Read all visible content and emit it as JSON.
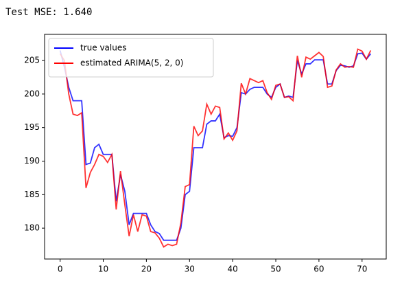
{
  "output_text": "Test MSE: 1.640",
  "chart_data": {
    "type": "line",
    "x": [
      0,
      1,
      2,
      3,
      4,
      5,
      6,
      7,
      8,
      9,
      10,
      11,
      12,
      13,
      14,
      15,
      16,
      17,
      18,
      19,
      20,
      21,
      22,
      23,
      24,
      25,
      26,
      27,
      28,
      29,
      30,
      31,
      32,
      33,
      34,
      35,
      36,
      37,
      38,
      39,
      40,
      41,
      42,
      43,
      44,
      45,
      46,
      47,
      48,
      49,
      50,
      51,
      52,
      53,
      54,
      55,
      56,
      57,
      58,
      59,
      60,
      61,
      62,
      63,
      64,
      65,
      66,
      67,
      68,
      69,
      70,
      71,
      72
    ],
    "series": [
      {
        "name": "true values",
        "color": "#0000ff",
        "values": [
          206.5,
          204,
          201,
          199,
          199,
          199,
          189.5,
          189.7,
          192,
          192.5,
          191,
          191,
          191,
          184,
          188,
          185.5,
          180.5,
          182.2,
          182.2,
          182.2,
          182.2,
          180.5,
          179.5,
          179.2,
          178.2,
          178.2,
          178.2,
          178.2,
          180,
          185,
          185.5,
          192,
          192,
          192,
          195.5,
          196,
          196,
          197,
          193.5,
          193.8,
          193.7,
          195,
          200.2,
          200,
          200.7,
          201,
          201,
          201,
          200,
          199.5,
          201,
          201.5,
          199.5,
          199.7,
          199.5,
          205,
          203,
          204.5,
          204.5,
          205.1,
          205.1,
          205.1,
          201.5,
          201.5,
          203.5,
          204.3,
          204.2,
          204,
          204.2,
          206,
          206.1,
          205.2,
          206
        ]
      },
      {
        "name": "estimated ARIMA(5, 2, 0)",
        "color": "#ff0000",
        "values": [
          206,
          205,
          200,
          197,
          196.8,
          197.2,
          186,
          188.3,
          189.5,
          191,
          190.7,
          189.8,
          191,
          182.8,
          188.5,
          183.5,
          178.8,
          182,
          179.5,
          182,
          181.8,
          179.5,
          179.3,
          178.5,
          177.2,
          177.6,
          177.4,
          177.6,
          180.8,
          186.2,
          186.5,
          195.2,
          193.8,
          194.5,
          198.5,
          197,
          198.2,
          198,
          193.3,
          194.2,
          193.1,
          194.5,
          201.6,
          200,
          202.3,
          202,
          201.7,
          202,
          200.2,
          199.2,
          201.3,
          201.5,
          199.5,
          199.6,
          199,
          205.7,
          202.5,
          205.5,
          205.2,
          205.7,
          206.2,
          205.6,
          201,
          201.2,
          203.6,
          204.5,
          204,
          204.1,
          204,
          206.7,
          206.4,
          205.2,
          206.5
        ]
      }
    ],
    "xlim": [
      -3.6,
      75.6
    ],
    "xticks": [
      0,
      10,
      20,
      30,
      40,
      50,
      60,
      70
    ],
    "ylim": [
      175.4,
      208.9
    ],
    "yticks": [
      180,
      185,
      190,
      195,
      200,
      205
    ],
    "legend": "upper left",
    "grid": false
  }
}
